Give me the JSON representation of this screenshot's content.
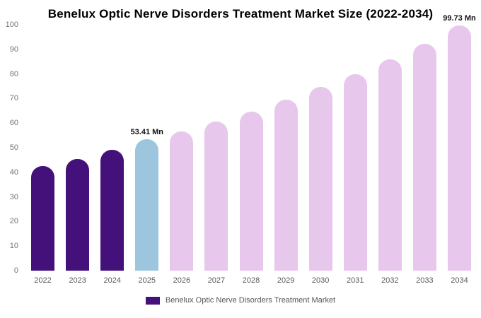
{
  "title": "Benelux Optic Nerve Disorders Treatment Market Size (2022-2034)",
  "legend": {
    "label": "Benelux Optic Nerve Disorders Treatment Market",
    "swatch_color": "#44107A"
  },
  "chart_data": {
    "type": "bar",
    "title": "Benelux Optic Nerve Disorders Treatment Market Size (2022-2034)",
    "xlabel": "",
    "ylabel": "",
    "unit": "Mn",
    "ylim": [
      0,
      100
    ],
    "yticks": [
      0,
      10,
      20,
      30,
      40,
      50,
      60,
      70,
      80,
      90,
      100
    ],
    "grid": false,
    "legend_position": "bottom",
    "categories": [
      "2022",
      "2023",
      "2024",
      "2025",
      "2026",
      "2027",
      "2028",
      "2029",
      "2030",
      "2031",
      "2032",
      "2033",
      "2034"
    ],
    "values": [
      42.5,
      45.5,
      49.2,
      53.41,
      56.5,
      60.5,
      64.7,
      69.5,
      74.6,
      80.0,
      85.9,
      92.3,
      99.73
    ],
    "bar_colors": [
      "#44107A",
      "#44107A",
      "#44107A",
      "#9DC6DE",
      "#E8C7EC",
      "#E8C7EC",
      "#E8C7EC",
      "#E8C7EC",
      "#E8C7EC",
      "#E8C7EC",
      "#E8C7EC",
      "#E8C7EC",
      "#E8C7EC"
    ],
    "color_roles": {
      "historical": "#44107A",
      "base_year": "#9DC6DE",
      "forecast": "#E8C7EC"
    },
    "annotations": [
      {
        "category": "2025",
        "text": "53.41 Mn"
      },
      {
        "category": "2034",
        "text": "99.73 Mn"
      }
    ]
  }
}
